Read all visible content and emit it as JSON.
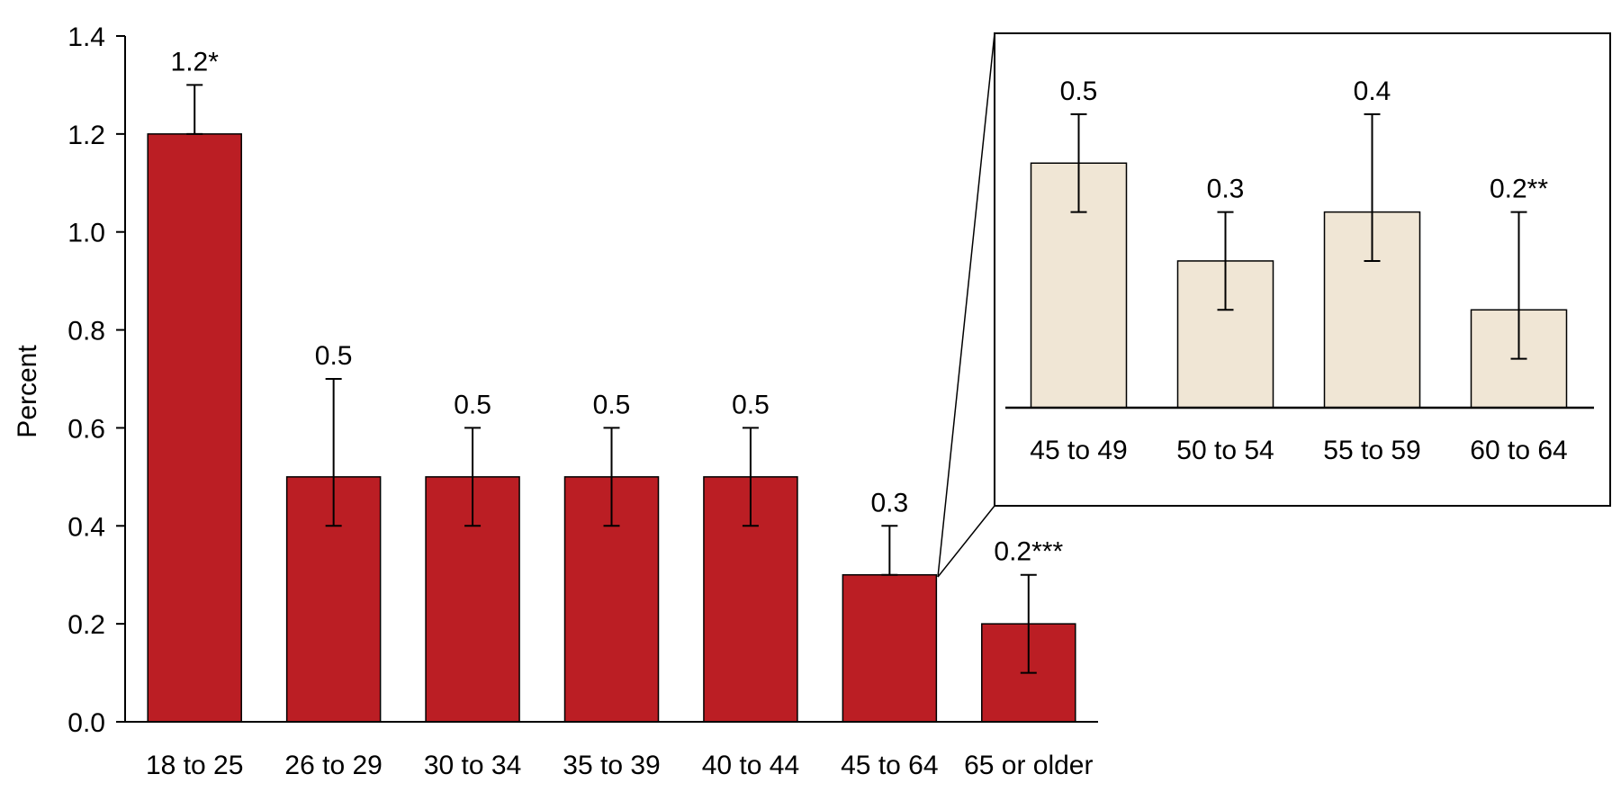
{
  "colors": {
    "main_bar": "#bb1e24",
    "inset_bar": "#f0e6d5",
    "outline": "#000000",
    "background": "#ffffff"
  },
  "chart_data": [
    {
      "type": "bar",
      "ylabel": "Percent",
      "ylim": [
        0,
        1.4
      ],
      "yticks": [
        0.0,
        0.2,
        0.4,
        0.6,
        0.8,
        1.0,
        1.2,
        1.4
      ],
      "ytick_labels": [
        "0.0",
        "0.2",
        "0.4",
        "0.6",
        "0.8",
        "1.0",
        "1.2",
        "1.4"
      ],
      "categories": [
        "18 to 25",
        "26 to 29",
        "30 to 34",
        "35 to 39",
        "40 to 44",
        "45 to 64",
        "65 or older"
      ],
      "values": [
        1.2,
        0.5,
        0.5,
        0.5,
        0.5,
        0.3,
        0.2
      ],
      "error_low": [
        1.2,
        0.4,
        0.4,
        0.4,
        0.4,
        0.3,
        0.1
      ],
      "error_high": [
        1.3,
        0.7,
        0.6,
        0.6,
        0.6,
        0.4,
        0.3
      ],
      "data_labels": [
        "1.2*",
        "0.5",
        "0.5",
        "0.5",
        "0.5",
        "0.3",
        "0.2***"
      ],
      "grid": false
    },
    {
      "type": "bar",
      "inset_of_category": "45 to 64",
      "categories": [
        "45 to 49",
        "50 to 54",
        "55 to 59",
        "60 to 64"
      ],
      "values": [
        0.5,
        0.3,
        0.4,
        0.2
      ],
      "error_low": [
        0.4,
        0.2,
        0.3,
        0.1
      ],
      "error_high": [
        0.6,
        0.4,
        0.6,
        0.4
      ],
      "data_labels": [
        "0.5",
        "0.3",
        "0.4",
        "0.2**"
      ],
      "grid": false
    }
  ]
}
